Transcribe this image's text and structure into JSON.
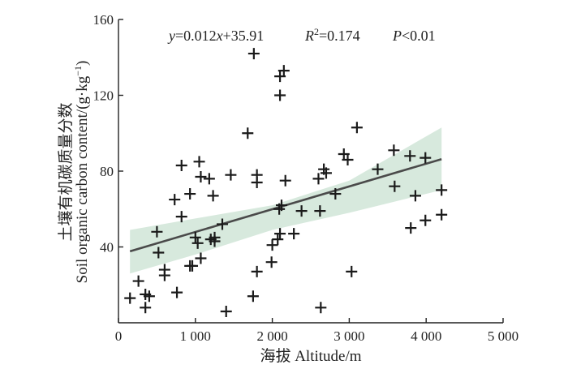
{
  "chart_data": {
    "type": "scatter",
    "xlabel": "海拔 Altitude/m",
    "ylabel_cn": "土壤有机碳质量分数",
    "ylabel_en": "Soil organic carbon content/(g·kg",
    "ylabel_sup": "−1",
    "ylabel_close": ")",
    "xlim": [
      0,
      5000
    ],
    "ylim": [
      0,
      160
    ],
    "xticks": [
      0,
      1000,
      2000,
      3000,
      4000,
      5000
    ],
    "xtick_labels": [
      "0",
      "1 000",
      "2 000",
      "3 000",
      "4 000",
      "5 000"
    ],
    "yticks": [
      40,
      80,
      120,
      160
    ],
    "ytick_labels": [
      "40",
      "80",
      "120",
      "160"
    ],
    "annotation": {
      "y_var": "y",
      "equals_a": "=0.012",
      "x_var": "x",
      "plus_b": "+35.91",
      "r_var": "R",
      "r_sup": "2",
      "r_val": "=0.174",
      "p_var": "P",
      "p_val": "<0.01"
    },
    "fit": {
      "slope": 0.012,
      "intercept": 35.91,
      "x_range": [
        150,
        4200
      ]
    },
    "confidence_band": {
      "x": [
        150,
        1000,
        2000,
        3000,
        4200
      ],
      "lower": [
        26,
        36,
        49,
        58,
        70
      ],
      "upper": [
        49,
        55,
        62,
        75,
        103
      ]
    },
    "points": [
      {
        "x": 150,
        "y": 13
      },
      {
        "x": 260,
        "y": 22
      },
      {
        "x": 350,
        "y": 15
      },
      {
        "x": 350,
        "y": 8
      },
      {
        "x": 400,
        "y": 14
      },
      {
        "x": 500,
        "y": 48
      },
      {
        "x": 520,
        "y": 37
      },
      {
        "x": 600,
        "y": 28
      },
      {
        "x": 600,
        "y": 25
      },
      {
        "x": 730,
        "y": 65
      },
      {
        "x": 760,
        "y": 16
      },
      {
        "x": 820,
        "y": 83
      },
      {
        "x": 820,
        "y": 56
      },
      {
        "x": 930,
        "y": 68
      },
      {
        "x": 930,
        "y": 30
      },
      {
        "x": 960,
        "y": 30
      },
      {
        "x": 1000,
        "y": 45
      },
      {
        "x": 1030,
        "y": 42
      },
      {
        "x": 1050,
        "y": 85
      },
      {
        "x": 1070,
        "y": 77
      },
      {
        "x": 1070,
        "y": 34
      },
      {
        "x": 1180,
        "y": 76
      },
      {
        "x": 1200,
        "y": 44
      },
      {
        "x": 1230,
        "y": 67
      },
      {
        "x": 1250,
        "y": 45
      },
      {
        "x": 1250,
        "y": 43
      },
      {
        "x": 1350,
        "y": 52
      },
      {
        "x": 1400,
        "y": 6
      },
      {
        "x": 1460,
        "y": 78
      },
      {
        "x": 1680,
        "y": 100
      },
      {
        "x": 1760,
        "y": 142
      },
      {
        "x": 1750,
        "y": 14
      },
      {
        "x": 1800,
        "y": 78
      },
      {
        "x": 1800,
        "y": 74
      },
      {
        "x": 1800,
        "y": 27
      },
      {
        "x": 1990,
        "y": 32
      },
      {
        "x": 2000,
        "y": 41
      },
      {
        "x": 2070,
        "y": 44
      },
      {
        "x": 2090,
        "y": 60
      },
      {
        "x": 2100,
        "y": 120
      },
      {
        "x": 2100,
        "y": 130
      },
      {
        "x": 2150,
        "y": 133
      },
      {
        "x": 2100,
        "y": 47
      },
      {
        "x": 2120,
        "y": 62
      },
      {
        "x": 2170,
        "y": 75
      },
      {
        "x": 2280,
        "y": 47
      },
      {
        "x": 2380,
        "y": 59
      },
      {
        "x": 2600,
        "y": 76
      },
      {
        "x": 2620,
        "y": 59
      },
      {
        "x": 2630,
        "y": 8
      },
      {
        "x": 2670,
        "y": 81
      },
      {
        "x": 2700,
        "y": 79
      },
      {
        "x": 2820,
        "y": 68
      },
      {
        "x": 2930,
        "y": 89
      },
      {
        "x": 2980,
        "y": 86
      },
      {
        "x": 3030,
        "y": 27
      },
      {
        "x": 3100,
        "y": 103
      },
      {
        "x": 3370,
        "y": 81
      },
      {
        "x": 3580,
        "y": 91
      },
      {
        "x": 3590,
        "y": 72
      },
      {
        "x": 3790,
        "y": 88
      },
      {
        "x": 3800,
        "y": 50
      },
      {
        "x": 3860,
        "y": 67
      },
      {
        "x": 3990,
        "y": 87
      },
      {
        "x": 3990,
        "y": 54
      },
      {
        "x": 4200,
        "y": 70
      },
      {
        "x": 4200,
        "y": 57
      }
    ]
  }
}
